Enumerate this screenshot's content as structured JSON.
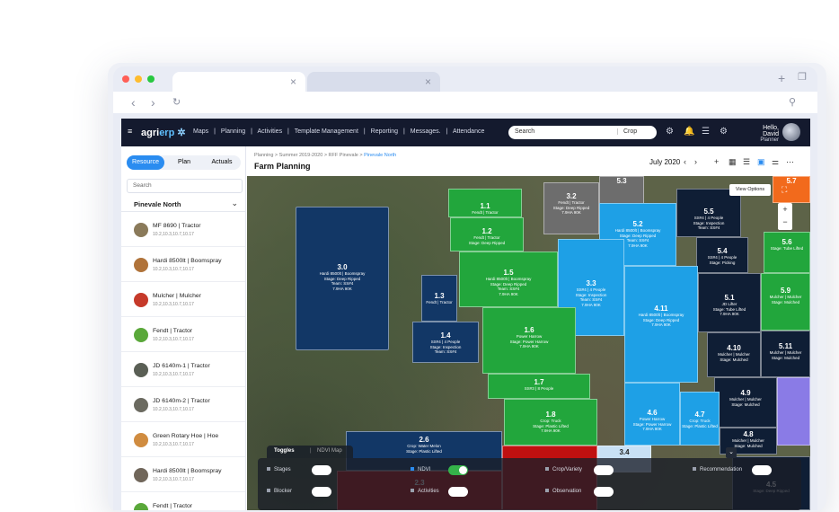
{
  "browser": {
    "tab_close": "×",
    "new_tab": "+"
  },
  "app": {
    "logo": {
      "left": "agri",
      "right": "erp"
    },
    "menu": [
      "Maps",
      "|",
      "Planning",
      "|",
      "Activities",
      "|",
      "Template Management",
      "|",
      "Reporting",
      "|",
      "Messages.",
      "|",
      "Attendance"
    ],
    "search_placeholder": "Search",
    "search_scope": "Crop",
    "user": {
      "greeting": "Hello, David",
      "role": "Planner"
    }
  },
  "sidebar": {
    "segments": [
      "Resource",
      "Plan",
      "Actuals"
    ],
    "search_placeholder": "Search",
    "group": "Pinevale North",
    "resources": [
      {
        "name": "MF 8690  |  Tractor",
        "codes": "10.2,10.3,10.7,10.17"
      },
      {
        "name": "Hardi 8500lt  |  Boomspray",
        "codes": "10.2,10.3,10.7,10.17"
      },
      {
        "name": "Mulcher  |  Mulcher",
        "codes": "10.2,10.3,10.7,10.17"
      },
      {
        "name": "Fendt  |  Tractor",
        "codes": "10.2,10.3,10.7,10.17"
      },
      {
        "name": "JD 6140m-1  |  Tractor",
        "codes": "10.2,10.3,10.7,10.17"
      },
      {
        "name": "JD 6140m-2  |  Tractor",
        "codes": "10.2,10.3,10.7,10.17"
      },
      {
        "name": "Green Rotary Hoe  |  Hoe",
        "codes": "10.2,10.3,10.7,10.17"
      },
      {
        "name": "Hardi 8500lt  |  Boomspray",
        "codes": "10.2,10.3,10.7,10.17"
      },
      {
        "name": "Fendt  |  Tractor",
        "codes": ""
      }
    ]
  },
  "header": {
    "breadcrumb": "Planning > Summer 2019-2020 > RFF Pinevale > ",
    "breadcrumb_current": "Pinevale North",
    "title": "Farm Planning",
    "month": "July 2020"
  },
  "map": {
    "view_options": "View Options",
    "fields": [
      {
        "id": "3.0",
        "lines": [
          "Hardi 8500lt | Boomspray",
          "Stage: Deep Ripped",
          "Team: SS#4",
          "",
          "7.9HA 90K"
        ]
      },
      {
        "id": "1.1",
        "lines": [
          "Fendt | Tractor"
        ]
      },
      {
        "id": "1.2",
        "lines": [
          "Fendt | Tractor",
          "Stage: Deep Ripped"
        ]
      },
      {
        "id": "3.2",
        "lines": [
          "Fendt | Tractor",
          "Stage: Deep Ripped",
          "",
          "7.9HA 90K"
        ]
      },
      {
        "id": "5.3",
        "lines": []
      },
      {
        "id": "5.2",
        "lines": [
          "Hardi 8500lt | Boomspray",
          "Stage: Deep Ripped",
          "Team: SS#4",
          "",
          "7.9HA 90K"
        ]
      },
      {
        "id": "5.5",
        "lines": [
          "SS#4 | 4 People",
          "Stage: Inspection",
          "Team: SS#4"
        ]
      },
      {
        "id": "1.5",
        "lines": [
          "Hardi 8500lt | Boomspray",
          "Stage: Deep Ripped",
          "Team: SS#4",
          "",
          "7.9HA 90K"
        ]
      },
      {
        "id": "1.3",
        "lines": [
          "Fendt | Tractor"
        ]
      },
      {
        "id": "3.3",
        "lines": [
          "SS#4 | 4 People",
          "Stage: Inspection",
          "Team: SS#4",
          "",
          "7.9HA 90K"
        ]
      },
      {
        "id": "5.4",
        "lines": [
          "SS#4 | 4 People",
          "Stage: Picking"
        ]
      },
      {
        "id": "5.7",
        "lines": []
      },
      {
        "id": "5.6",
        "lines": [
          "Stage: Tube Lifted"
        ]
      },
      {
        "id": "5.9",
        "lines": [
          "Mulcher | Mulcher",
          "Stage: Mulched"
        ]
      },
      {
        "id": "1.4",
        "lines": [
          "SS#4 | 4 People",
          "Stage: Inspection",
          "Team: SS#4"
        ]
      },
      {
        "id": "1.6",
        "lines": [
          "Power Harrow",
          "Stage: Power Harrow",
          "",
          "7.9HA 90K"
        ]
      },
      {
        "id": "4.11",
        "lines": [
          "Hardi 8500lt | Boomspray",
          "Stage: Deep Ripped",
          "",
          "7.9HA 90K"
        ]
      },
      {
        "id": "5.1",
        "lines": [
          "JD Lifter",
          "Stage: Tube Lifted",
          "",
          "7.9HA 90K"
        ]
      },
      {
        "id": "4.10",
        "lines": [
          "Mulcher | Mulcher",
          "Stage: Mulched"
        ]
      },
      {
        "id": "5.11",
        "lines": [
          "Mulcher | Mulcher",
          "Stage: Mulched"
        ]
      },
      {
        "id": "1.7",
        "lines": [
          "SS#3 | 8 People"
        ]
      },
      {
        "id": "4.9",
        "lines": [
          "Mulcher | Mulcher",
          "Stage: Mulched"
        ]
      },
      {
        "id": "1.8",
        "lines": [
          "Crop: Truck",
          "Stage: Plastic Lifted",
          "",
          "7.9HA 90K"
        ]
      },
      {
        "id": "4.6",
        "lines": [
          "Power Harrow",
          "Stage: Power Harrow",
          "",
          "7.9HA 90K"
        ]
      },
      {
        "id": "4.7",
        "lines": [
          "Crop: Truck",
          "Stage: Plastic Lifted"
        ]
      },
      {
        "id": "4.8",
        "lines": [
          "Mulcher | Mulcher",
          "Stage: Mulched"
        ]
      },
      {
        "id": "2.6",
        "lines": [
          "Crop: Water Melon",
          "Stage: Plastic Lifted"
        ]
      },
      {
        "id": "3.4",
        "lines": []
      },
      {
        "id": "2.3",
        "lines": []
      },
      {
        "id": "4.5",
        "lines": [
          "Stage: Deep Ripped"
        ]
      }
    ],
    "toggles": {
      "tabs": [
        "Toggles",
        "|",
        "NDVI Map"
      ],
      "items": [
        {
          "label": "Stages",
          "on": false
        },
        {
          "label": "NDVI",
          "on": true
        },
        {
          "label": "Crop/Variety",
          "on": false
        },
        {
          "label": "Recommendation",
          "on": false
        },
        {
          "label": "Blocker",
          "on": false
        },
        {
          "label": "Activities",
          "on": false
        },
        {
          "label": "Observation",
          "on": false
        }
      ]
    }
  },
  "colors": {
    "navy": "#123766",
    "green": "#22a63c",
    "blue": "#1ea0e6",
    "dark": "#0f1e35",
    "purple": "#8a7be6",
    "red": "#c01010",
    "orange": "#f26a1c"
  }
}
